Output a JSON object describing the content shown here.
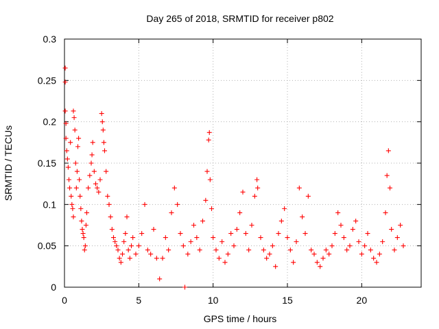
{
  "chart_data": {
    "type": "scatter",
    "title": "Day 265 of 2018, SRMTID for receiver p802",
    "xlabel": "GPS time / hours",
    "ylabel": "SRMTID / TECUs",
    "xlim": [
      0,
      24
    ],
    "ylim": [
      0,
      0.3
    ],
    "xticks": [
      0,
      5,
      10,
      15,
      20
    ],
    "xtick_labels": [
      "0",
      "5",
      "10",
      "15",
      "20"
    ],
    "yticks": [
      0,
      0.05,
      0.1,
      0.15,
      0.2,
      0.25,
      0.3
    ],
    "ytick_labels": [
      "0",
      "0.05",
      "0.1",
      "0.15",
      "0.2",
      "0.25",
      "0.3"
    ],
    "grid": true,
    "marker": "plus",
    "series_color": "#ff0000",
    "series": [
      {
        "name": "SRMTID",
        "points": [
          [
            0.05,
            0.265
          ],
          [
            0.05,
            0.248
          ],
          [
            0.05,
            0.213
          ],
          [
            0.1,
            0.198
          ],
          [
            0.1,
            0.18
          ],
          [
            0.15,
            0.165
          ],
          [
            0.2,
            0.155
          ],
          [
            0.25,
            0.145
          ],
          [
            0.3,
            0.13
          ],
          [
            0.35,
            0.12
          ],
          [
            0.4,
            0.175
          ],
          [
            0.45,
            0.11
          ],
          [
            0.5,
            0.1
          ],
          [
            0.55,
            0.095
          ],
          [
            0.6,
            0.085
          ],
          [
            0.6,
            0.213
          ],
          [
            0.65,
            0.205
          ],
          [
            0.7,
            0.19
          ],
          [
            0.75,
            0.15
          ],
          [
            0.8,
            0.12
          ],
          [
            0.85,
            0.14
          ],
          [
            0.9,
            0.17
          ],
          [
            0.95,
            0.18
          ],
          [
            1.0,
            0.13
          ],
          [
            1.05,
            0.11
          ],
          [
            1.1,
            0.095
          ],
          [
            1.15,
            0.08
          ],
          [
            1.2,
            0.07
          ],
          [
            1.25,
            0.065
          ],
          [
            1.3,
            0.06
          ],
          [
            1.35,
            0.045
          ],
          [
            1.4,
            0.05
          ],
          [
            1.45,
            0.075
          ],
          [
            1.5,
            0.09
          ],
          [
            1.6,
            0.12
          ],
          [
            1.7,
            0.135
          ],
          [
            1.8,
            0.15
          ],
          [
            1.85,
            0.16
          ],
          [
            1.9,
            0.175
          ],
          [
            2.0,
            0.14
          ],
          [
            2.1,
            0.125
          ],
          [
            2.2,
            0.12
          ],
          [
            2.3,
            0.115
          ],
          [
            2.4,
            0.13
          ],
          [
            2.5,
            0.21
          ],
          [
            2.55,
            0.2
          ],
          [
            2.6,
            0.19
          ],
          [
            2.65,
            0.175
          ],
          [
            2.7,
            0.165
          ],
          [
            2.8,
            0.14
          ],
          [
            2.9,
            0.11
          ],
          [
            3.0,
            0.1
          ],
          [
            3.1,
            0.085
          ],
          [
            3.2,
            0.07
          ],
          [
            3.3,
            0.06
          ],
          [
            3.4,
            0.055
          ],
          [
            3.5,
            0.05
          ],
          [
            3.6,
            0.045
          ],
          [
            3.7,
            0.035
          ],
          [
            3.8,
            0.03
          ],
          [
            3.9,
            0.04
          ],
          [
            4.0,
            0.055
          ],
          [
            4.1,
            0.065
          ],
          [
            4.2,
            0.085
          ],
          [
            4.3,
            0.045
          ],
          [
            4.4,
            0.035
          ],
          [
            4.5,
            0.05
          ],
          [
            4.6,
            0.06
          ],
          [
            4.8,
            0.04
          ],
          [
            5.0,
            0.05
          ],
          [
            5.2,
            0.065
          ],
          [
            5.4,
            0.1
          ],
          [
            5.6,
            0.045
          ],
          [
            5.8,
            0.04
          ],
          [
            6.0,
            0.07
          ],
          [
            6.2,
            0.035
          ],
          [
            6.4,
            0.01
          ],
          [
            6.6,
            0.035
          ],
          [
            6.8,
            0.06
          ],
          [
            7.0,
            0.045
          ],
          [
            7.2,
            0.09
          ],
          [
            7.4,
            0.12
          ],
          [
            7.6,
            0.1
          ],
          [
            7.8,
            0.065
          ],
          [
            8.0,
            0.05
          ],
          [
            8.1,
            0.0
          ],
          [
            8.3,
            0.04
          ],
          [
            8.5,
            0.055
          ],
          [
            8.7,
            0.075
          ],
          [
            8.9,
            0.06
          ],
          [
            9.1,
            0.045
          ],
          [
            9.3,
            0.08
          ],
          [
            9.5,
            0.105
          ],
          [
            9.6,
            0.14
          ],
          [
            9.7,
            0.178
          ],
          [
            9.75,
            0.187
          ],
          [
            9.8,
            0.13
          ],
          [
            9.9,
            0.095
          ],
          [
            10.0,
            0.06
          ],
          [
            10.2,
            0.045
          ],
          [
            10.4,
            0.035
          ],
          [
            10.6,
            0.055
          ],
          [
            10.8,
            0.03
          ],
          [
            11.0,
            0.04
          ],
          [
            11.2,
            0.065
          ],
          [
            11.4,
            0.05
          ],
          [
            11.6,
            0.07
          ],
          [
            11.8,
            0.09
          ],
          [
            12.0,
            0.115
          ],
          [
            12.2,
            0.065
          ],
          [
            12.4,
            0.045
          ],
          [
            12.6,
            0.075
          ],
          [
            12.8,
            0.11
          ],
          [
            12.95,
            0.13
          ],
          [
            13.0,
            0.12
          ],
          [
            13.2,
            0.06
          ],
          [
            13.4,
            0.045
          ],
          [
            13.6,
            0.035
          ],
          [
            13.8,
            0.04
          ],
          [
            14.0,
            0.05
          ],
          [
            14.2,
            0.025
          ],
          [
            14.4,
            0.065
          ],
          [
            14.6,
            0.08
          ],
          [
            14.8,
            0.095
          ],
          [
            15.0,
            0.06
          ],
          [
            15.2,
            0.045
          ],
          [
            15.4,
            0.03
          ],
          [
            15.6,
            0.055
          ],
          [
            15.8,
            0.12
          ],
          [
            16.0,
            0.085
          ],
          [
            16.2,
            0.065
          ],
          [
            16.4,
            0.11
          ],
          [
            16.6,
            0.045
          ],
          [
            16.8,
            0.04
          ],
          [
            17.0,
            0.03
          ],
          [
            17.2,
            0.025
          ],
          [
            17.4,
            0.035
          ],
          [
            17.6,
            0.045
          ],
          [
            17.8,
            0.04
          ],
          [
            18.0,
            0.05
          ],
          [
            18.2,
            0.065
          ],
          [
            18.4,
            0.09
          ],
          [
            18.6,
            0.075
          ],
          [
            18.8,
            0.06
          ],
          [
            19.0,
            0.045
          ],
          [
            19.2,
            0.05
          ],
          [
            19.4,
            0.07
          ],
          [
            19.6,
            0.08
          ],
          [
            19.8,
            0.055
          ],
          [
            20.0,
            0.04
          ],
          [
            20.2,
            0.05
          ],
          [
            20.4,
            0.065
          ],
          [
            20.6,
            0.045
          ],
          [
            20.8,
            0.035
          ],
          [
            21.0,
            0.03
          ],
          [
            21.2,
            0.04
          ],
          [
            21.4,
            0.055
          ],
          [
            21.6,
            0.09
          ],
          [
            21.7,
            0.135
          ],
          [
            21.8,
            0.165
          ],
          [
            21.9,
            0.12
          ],
          [
            22.0,
            0.07
          ],
          [
            22.2,
            0.045
          ],
          [
            22.4,
            0.06
          ],
          [
            22.6,
            0.075
          ],
          [
            22.8,
            0.05
          ]
        ]
      }
    ]
  }
}
